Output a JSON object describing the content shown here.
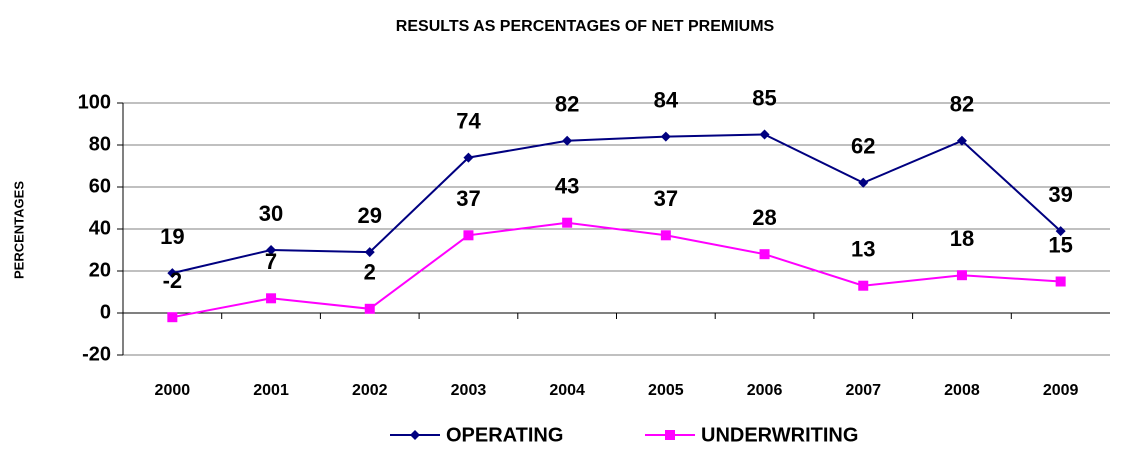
{
  "chart_data": {
    "type": "line",
    "title": "RESULTS AS PERCENTAGES OF NET PREMIUMS",
    "y_label": "PERCENTAGES",
    "categories": [
      "2000",
      "2001",
      "2002",
      "2003",
      "2004",
      "2005",
      "2006",
      "2007",
      "2008",
      "2009"
    ],
    "series": [
      {
        "name": "OPERATING",
        "color": "#000080",
        "marker": "diamond",
        "values": [
          19,
          30,
          29,
          74,
          82,
          84,
          85,
          62,
          82,
          39
        ]
      },
      {
        "name": "UNDERWRITING",
        "color": "#ff00ff",
        "marker": "square",
        "values": [
          -2,
          7,
          2,
          37,
          43,
          37,
          28,
          13,
          18,
          15
        ]
      }
    ],
    "ylim": [
      -20,
      100
    ],
    "yticks": [
      -20,
      0,
      20,
      40,
      60,
      80,
      100
    ],
    "grid": true,
    "legend": "bottom"
  }
}
